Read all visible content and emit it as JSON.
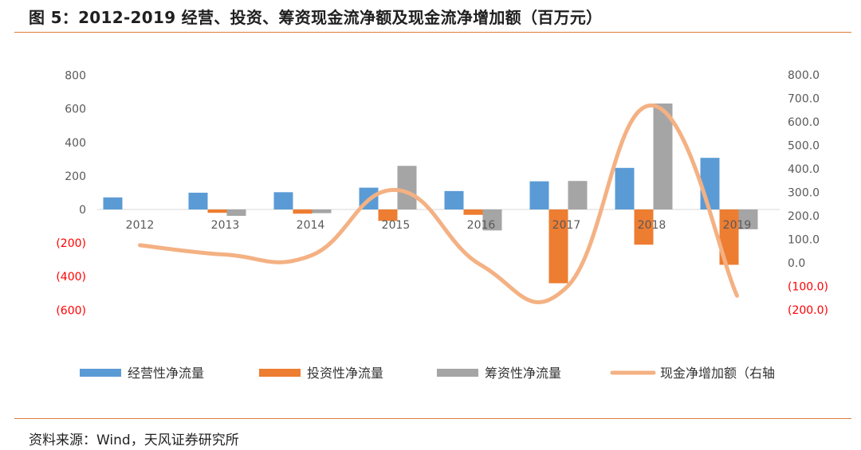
{
  "header": {
    "title": "图 5：2012-2019 经营、投资、筹资现金流净额及现金流净增加额（百万元）"
  },
  "footer": {
    "source": "资料来源：Wind，天风证券研究所"
  },
  "colors": {
    "accent_rule": "#e07b39",
    "negative_tick": "#ff0000"
  },
  "chart_data": {
    "type": "bar",
    "categories": [
      "2012",
      "2013",
      "2014",
      "2015",
      "2016",
      "2017",
      "2018",
      "2019"
    ],
    "series": [
      {
        "name": "经营性净流量",
        "type": "bar",
        "axis": "left",
        "color": "#5b9bd5",
        "values": [
          72,
          100,
          103,
          130,
          110,
          168,
          248,
          308
        ]
      },
      {
        "name": "投资性净流量",
        "type": "bar",
        "axis": "left",
        "color": "#ed7d31",
        "values": [
          0,
          -20,
          -25,
          -68,
          -32,
          -440,
          -210,
          -330
        ]
      },
      {
        "name": "筹资性净流量",
        "type": "bar",
        "axis": "left",
        "color": "#a5a5a5",
        "values": [
          0,
          -38,
          -22,
          260,
          -125,
          170,
          632,
          -118
        ]
      },
      {
        "name": "现金净增加额（右轴",
        "type": "line",
        "axis": "right",
        "color": "#f4b183",
        "values": [
          75,
          35,
          30,
          310,
          -10,
          -105,
          670,
          -140
        ]
      }
    ],
    "left_axis": {
      "ylim": [
        -600,
        800
      ],
      "ticks": [
        800,
        600,
        400,
        200,
        0,
        -200,
        -400,
        -600
      ],
      "tick_labels": [
        "800",
        "600",
        "400",
        "200",
        "0",
        "(200)",
        "(400)",
        "(600)"
      ]
    },
    "right_axis": {
      "ylim": [
        -200,
        800
      ],
      "ticks": [
        800,
        700,
        600,
        500,
        400,
        300,
        200,
        100,
        0,
        -100,
        -200
      ],
      "tick_labels": [
        "800.0",
        "700.0",
        "600.0",
        "500.0",
        "400.0",
        "300.0",
        "200.0",
        "100.0",
        "0.0",
        "(100.0)",
        "(200.0)"
      ]
    },
    "grid": false,
    "legend_position": "bottom"
  }
}
